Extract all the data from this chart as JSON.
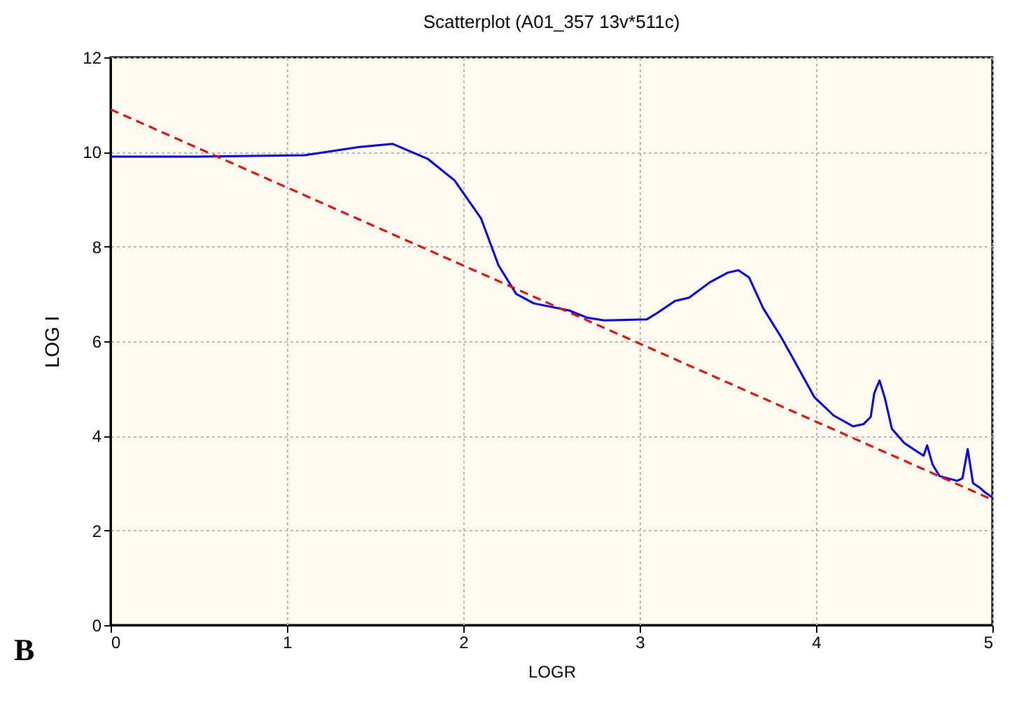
{
  "chart_data": {
    "type": "line",
    "title": "Scatterplot (A01_357 13v*511c)",
    "xlabel": "LOGR",
    "ylabel": "LOG I",
    "annotations": [
      "B"
    ],
    "xlim": [
      0,
      5
    ],
    "ylim": [
      0,
      12
    ],
    "xticks": [
      0,
      1,
      2,
      3,
      4,
      5
    ],
    "yticks": [
      0,
      2,
      4,
      6,
      8,
      10,
      12
    ],
    "grid": true,
    "series": [
      {
        "color": "#0000ff",
        "line_style": "solid",
        "x": [
          0,
          0.5,
          1.1,
          1.4,
          1.6,
          1.8,
          1.95,
          2.1,
          2.2,
          2.3,
          2.4,
          2.6,
          2.7,
          2.8,
          3.04,
          3.1,
          3.2,
          3.28,
          3.4,
          3.5,
          3.56,
          3.62,
          3.7,
          3.8,
          3.86,
          3.99,
          4.1,
          4.21,
          4.27,
          4.31,
          4.33,
          4.36,
          4.39,
          4.43,
          4.5,
          4.58,
          4.61,
          4.63,
          4.66,
          4.7,
          4.8,
          4.83,
          4.86,
          4.89,
          4.93,
          4.96,
          5
        ],
        "values": [
          9.9,
          9.9,
          9.93,
          10.1,
          10.17,
          9.85,
          9.4,
          8.6,
          7.6,
          7.0,
          6.8,
          6.65,
          6.5,
          6.44,
          6.46,
          6.6,
          6.85,
          6.92,
          7.25,
          7.45,
          7.5,
          7.35,
          6.7,
          6.1,
          5.7,
          4.82,
          4.43,
          4.2,
          4.25,
          4.4,
          4.9,
          5.17,
          4.8,
          4.15,
          3.85,
          3.65,
          3.58,
          3.8,
          3.4,
          3.15,
          3.05,
          3.1,
          3.72,
          3.0,
          2.9,
          2.8,
          2.7
        ]
      },
      {
        "color": "#ff0000",
        "line_style": "dashed",
        "x": [
          0,
          5
        ],
        "values": [
          10.9,
          2.65
        ]
      }
    ]
  }
}
